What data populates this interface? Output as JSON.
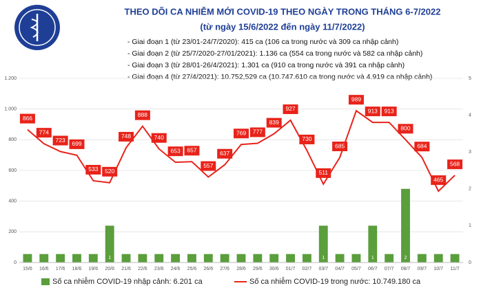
{
  "chart_data": {
    "type": "bar-line",
    "title": "THEO DÕI CA NHIỄM MỚI COVID-19 THEO NGÀY TRONG THÁNG 6-7/2022",
    "subtitle": "(từ ngày 15/6/2022 đến ngày 11/7/2022)",
    "annotations": [
      "- Giai đoạn 1 (từ 23/01-24/7/2020): 415 ca (106 ca trong nước và 309 ca nhập cảnh)",
      "- Giai đoạn 2 (từ 25/7/2020-27/01/2021): 1.136 ca (554 ca trong nước và 582 ca nhập cảnh)",
      "- Giai đoạn 3 (từ 28/01-26/4/2021): 1.301 ca (910 ca trong nước và 391 ca nhập cảnh)",
      "- Giai đoạn 4 (từ 27/4/2021): 10.752,529 ca (10.747.610 ca trong nước và 4.919 ca nhập cảnh)"
    ],
    "categories": [
      "15/6",
      "16/6",
      "17/6",
      "18/6",
      "19/6",
      "20/6",
      "21/6",
      "22/6",
      "23/6",
      "24/6",
      "25/6",
      "26/6",
      "27/6",
      "28/6",
      "29/6",
      "30/6",
      "01/7",
      "02/7",
      "03/7",
      "04/7",
      "05/7",
      "06/7",
      "07/7",
      "08/7",
      "09/7",
      "10/7",
      "11/7"
    ],
    "series": [
      {
        "name": "Số ca nhiễm COVID-19 nhập cảnh: 6.201 ca",
        "color": "#5b9e3c",
        "axis": "y2",
        "values": [
          0.23,
          0.23,
          0.23,
          0.23,
          0.23,
          1,
          0.23,
          0.23,
          0.23,
          0.23,
          0.23,
          0.23,
          0.23,
          0.23,
          0.23,
          0.23,
          0.23,
          0.23,
          1,
          0.23,
          0.23,
          1,
          0.23,
          2,
          0.23,
          0.23,
          0.23
        ]
      },
      {
        "name": "Số ca nhiễm COVID-19 trong nước: 10.749.180 ca",
        "color": "#e8231a",
        "values": [
          866,
          774,
          723,
          699,
          533,
          520,
          748,
          888,
          740,
          653,
          657,
          557,
          637,
          769,
          777,
          839,
          927,
          730,
          511,
          685,
          989,
          913,
          913,
          800,
          684,
          465,
          568
        ]
      }
    ],
    "ylim": [
      0,
      1200
    ],
    "yticks": [
      0,
      200,
      400,
      600,
      800,
      {
        "value": 1000,
        "label": "1.000"
      },
      {
        "value": 1200,
        "label": "1.200"
      }
    ],
    "y2lim": [
      0,
      5
    ],
    "y2ticks": [
      0,
      1,
      2,
      3,
      4,
      5
    ]
  }
}
